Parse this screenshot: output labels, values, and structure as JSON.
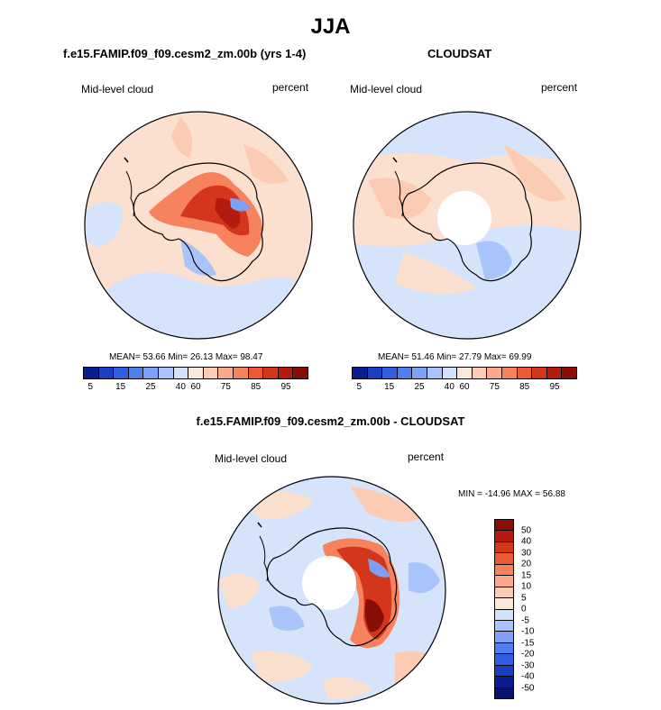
{
  "figure": {
    "title": "JJA",
    "bottom_title": "f.e15.FAMIP.f09_f09.cesm2_zm.00b - CLOUDSAT"
  },
  "panels": [
    {
      "title": "f.e15.FAMIP.f09_f09.cesm2_zm.00b (yrs 1-4)",
      "variable": "Mid-level cloud",
      "units": "percent",
      "stats": "MEAN=  53.66  Min=  26.13  Max=  98.47"
    },
    {
      "title": "CLOUDSAT",
      "variable": "Mid-level cloud",
      "units": "percent",
      "stats": "MEAN=  51.46  Min=  27.79  Max=  69.99"
    },
    {
      "variable": "Mid-level cloud",
      "units": "percent",
      "stats": "MIN = -14.96 MAX =  56.88"
    }
  ],
  "colorbar_levels": {
    "labels": [
      "5",
      "15",
      "25",
      "40",
      "60",
      "75",
      "85",
      "95"
    ],
    "colors": [
      "#0a1f8f",
      "#1a3fc0",
      "#2f5ee0",
      "#4f7ef0",
      "#7ba0f5",
      "#a8c4fa",
      "#d3e2fc",
      "#fbe6da",
      "#fccbb3",
      "#fba98a",
      "#f6825e",
      "#ea5a33",
      "#d3361a",
      "#b31b0f",
      "#8a0e08"
    ]
  },
  "colorbar_diff": {
    "labels": [
      "50",
      "40",
      "30",
      "20",
      "15",
      "10",
      "5",
      "0",
      "-5",
      "-10",
      "-15",
      "-20",
      "-30",
      "-40",
      "-50"
    ],
    "colors": [
      "#8a0e08",
      "#b31b0f",
      "#d3361a",
      "#ea5a33",
      "#f6825e",
      "#fba98a",
      "#fccbb3",
      "#fbe6da",
      "#d3e2fc",
      "#a8c4fa",
      "#7ba0f5",
      "#4f7ef0",
      "#2f5ee0",
      "#1a3fc0",
      "#0a1f8f",
      "#061470"
    ]
  },
  "map_colors": {
    "land_outline": "#000000",
    "background_pos": "#fbe0d0",
    "background_neg": "#d6e4fb",
    "missing": "#ffffff"
  }
}
